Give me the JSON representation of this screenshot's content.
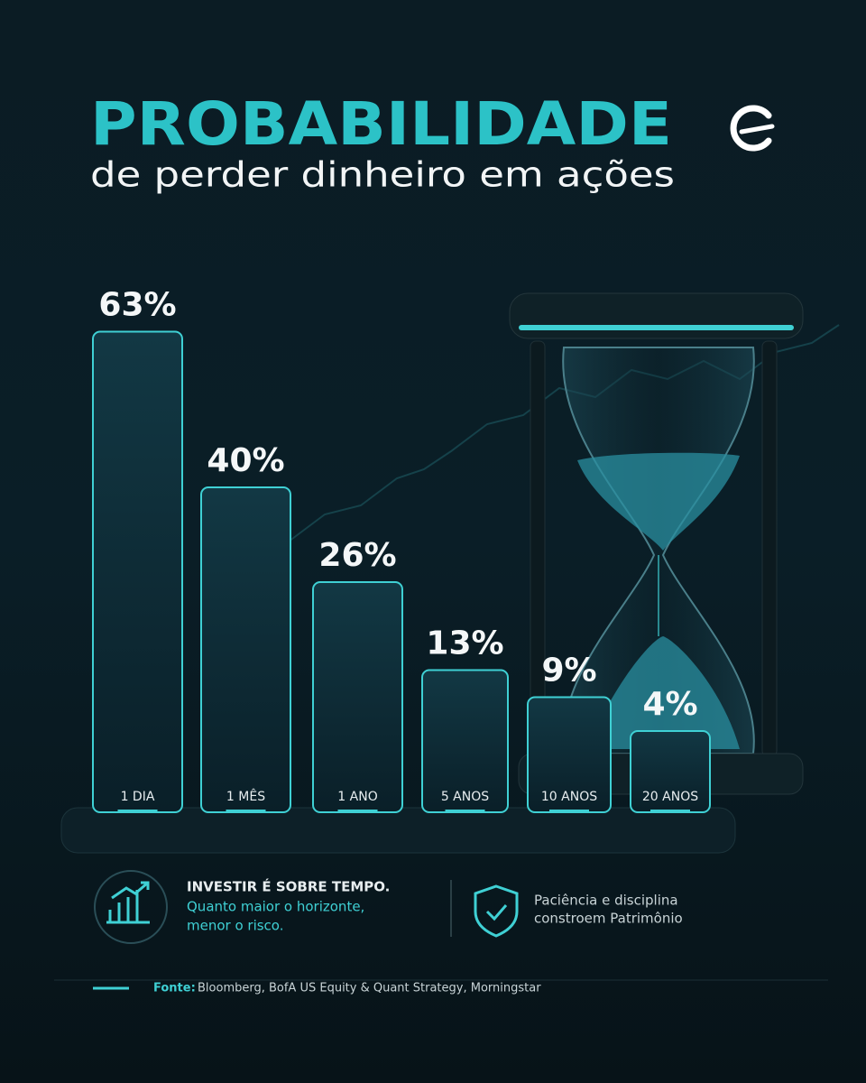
{
  "chart_data": {
    "type": "bar",
    "title": "PROBABILIDADE",
    "subtitle": "de perder dinheiro em ações",
    "categories": [
      "1 DIA",
      "1 MÊS",
      "1 ANO",
      "5 ANOS",
      "10 ANOS",
      "20 ANOS"
    ],
    "values": [
      63,
      40,
      26,
      13,
      9,
      4
    ],
    "value_labels": [
      "63%",
      "40%",
      "26%",
      "13%",
      "9%",
      "4%"
    ],
    "color": "#3fd0d4"
  },
  "callouts": {
    "left": {
      "heading": "INVESTIR É SOBRE TEMPO.",
      "lines": [
        "Quanto maior o horizonte,",
        "menor o risco."
      ]
    },
    "right": {
      "lines": [
        "Paciência e disciplina",
        "constroem Patrimônio"
      ]
    }
  },
  "source": {
    "label": "Fonte:",
    "text": "Bloomberg, BofA US Equity & Quant Strategy, Morningstar"
  }
}
